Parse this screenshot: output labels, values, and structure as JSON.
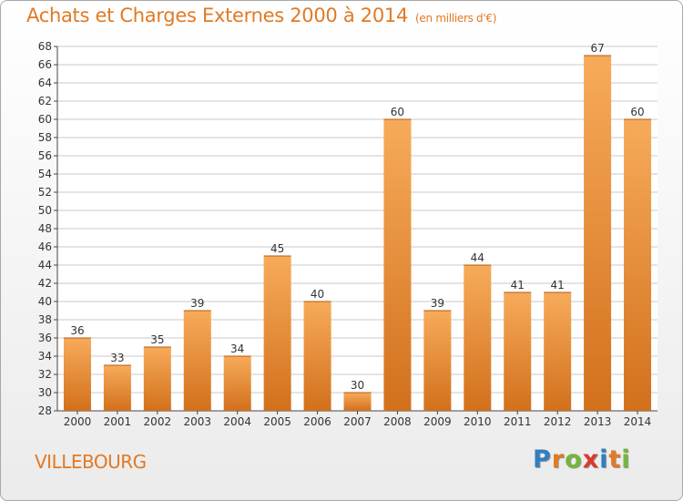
{
  "title": "Achats et Charges Externes 2000 à 2014",
  "subtitle": "(en milliers d'€)",
  "place": "VILLEBOURG",
  "logo": {
    "letters": [
      "P",
      "r",
      "o",
      "x",
      "i",
      "t",
      "i"
    ],
    "colors": [
      "#2f7fc1",
      "#e07a25",
      "#74b63a",
      "#d93a2b",
      "#2f7fc1",
      "#e07a25",
      "#74b63a"
    ]
  },
  "colors": {
    "accent": "#e07a25",
    "bar_top": "#f7ab5a",
    "bar_bottom": "#d2701c",
    "grid": "#c8c8c8"
  },
  "chart_data": {
    "type": "bar",
    "title": "Achats et Charges Externes 2000 à 2014",
    "subtitle": "(en milliers d'€)",
    "xlabel": "",
    "ylabel": "",
    "ylim": [
      28,
      68
    ],
    "ytick_step": 2,
    "grid": true,
    "categories": [
      "2000",
      "2001",
      "2002",
      "2003",
      "2004",
      "2005",
      "2006",
      "2007",
      "2008",
      "2009",
      "2010",
      "2011",
      "2012",
      "2013",
      "2014"
    ],
    "values": [
      36,
      33,
      35,
      39,
      34,
      45,
      40,
      30,
      60,
      39,
      44,
      41,
      41,
      67,
      60
    ]
  }
}
